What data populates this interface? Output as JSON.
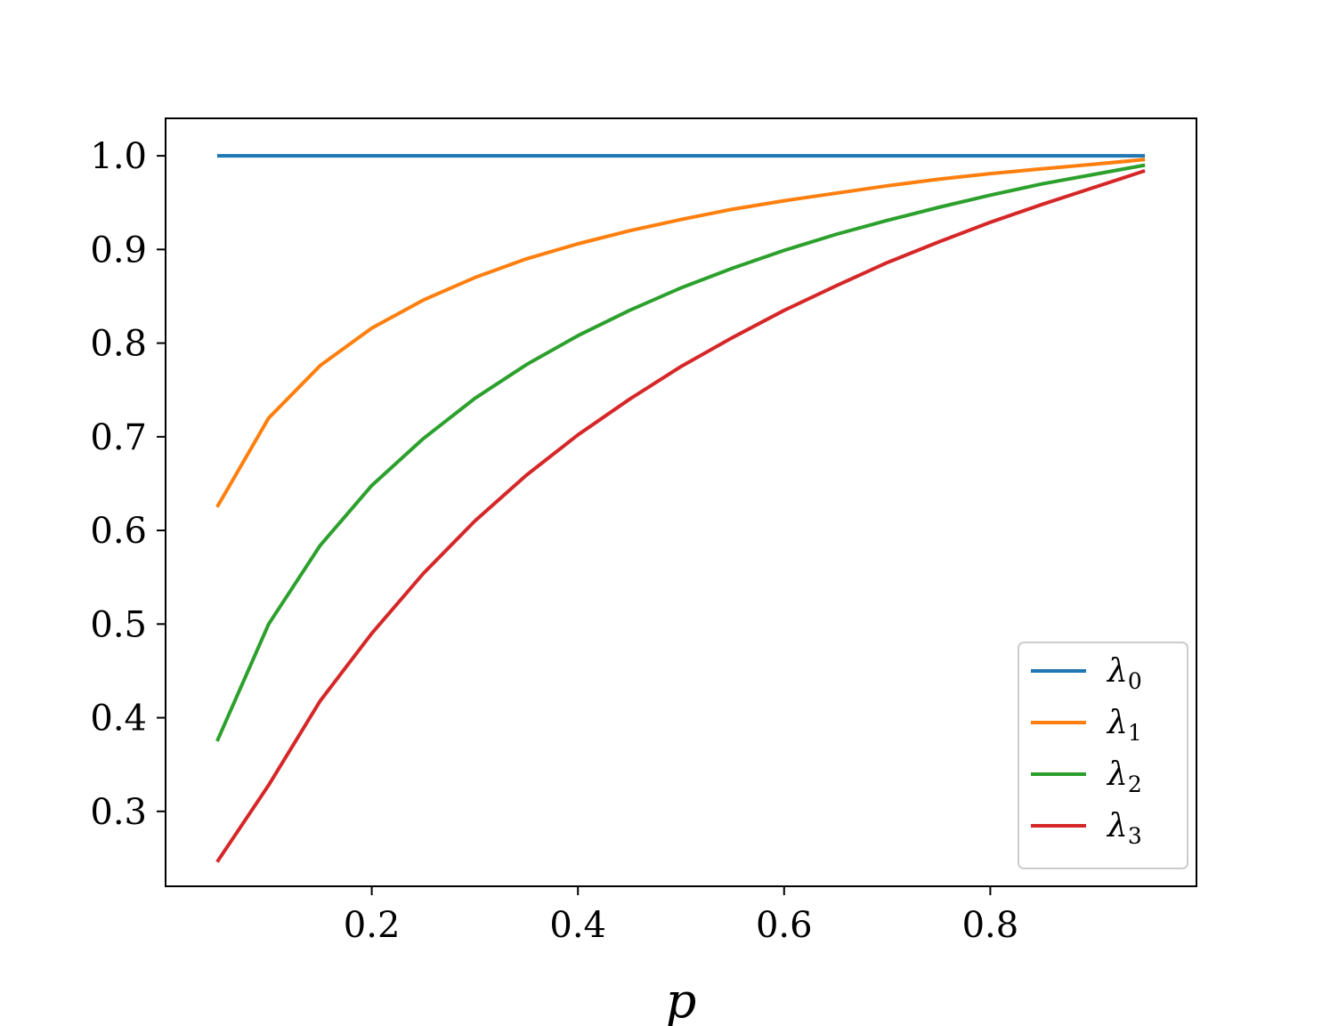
{
  "chart_data": {
    "type": "line",
    "xlabel": "p",
    "ylabel": "",
    "xlim": [
      0.0,
      1.0
    ],
    "ylim": [
      0.22,
      1.04
    ],
    "xticks": [
      0.2,
      0.4,
      0.6,
      0.8
    ],
    "xtick_labels": [
      "0.2",
      "0.4",
      "0.6",
      "0.8"
    ],
    "yticks": [
      0.3,
      0.4,
      0.5,
      0.6,
      0.7,
      0.8,
      0.9,
      1.0
    ],
    "ytick_labels": [
      "0.3",
      "0.4",
      "0.5",
      "0.6",
      "0.7",
      "0.8",
      "0.9",
      "1.0"
    ],
    "grid": false,
    "legend_position": "lower-right",
    "x": [
      0.05,
      0.1,
      0.15,
      0.2,
      0.25,
      0.3,
      0.35,
      0.4,
      0.45,
      0.5,
      0.55,
      0.6,
      0.65,
      0.7,
      0.75,
      0.8,
      0.85,
      0.9,
      0.95
    ],
    "series": [
      {
        "name": "λ0",
        "symbol": "λ",
        "subscript": "0",
        "color": "#1f77b4",
        "values": [
          1.0,
          1.0,
          1.0,
          1.0,
          1.0,
          1.0,
          1.0,
          1.0,
          1.0,
          1.0,
          1.0,
          1.0,
          1.0,
          1.0,
          1.0,
          1.0,
          1.0,
          1.0,
          1.0
        ]
      },
      {
        "name": "λ1",
        "symbol": "λ",
        "subscript": "1",
        "color": "#ff7f0e",
        "values": [
          0.625,
          0.72,
          0.776,
          0.816,
          0.846,
          0.87,
          0.89,
          0.906,
          0.92,
          0.932,
          0.943,
          0.952,
          0.96,
          0.968,
          0.975,
          0.981,
          0.986,
          0.991,
          0.996
        ]
      },
      {
        "name": "λ2",
        "symbol": "λ",
        "subscript": "2",
        "color": "#2ca02c",
        "values": [
          0.375,
          0.5,
          0.584,
          0.648,
          0.698,
          0.741,
          0.777,
          0.808,
          0.835,
          0.859,
          0.88,
          0.899,
          0.916,
          0.931,
          0.945,
          0.958,
          0.97,
          0.98,
          0.99
        ]
      },
      {
        "name": "λ3",
        "symbol": "λ",
        "subscript": "3",
        "color": "#d62728",
        "values": [
          0.246,
          0.328,
          0.418,
          0.49,
          0.554,
          0.61,
          0.659,
          0.702,
          0.74,
          0.775,
          0.806,
          0.835,
          0.861,
          0.886,
          0.908,
          0.929,
          0.948,
          0.966,
          0.984
        ]
      }
    ]
  }
}
